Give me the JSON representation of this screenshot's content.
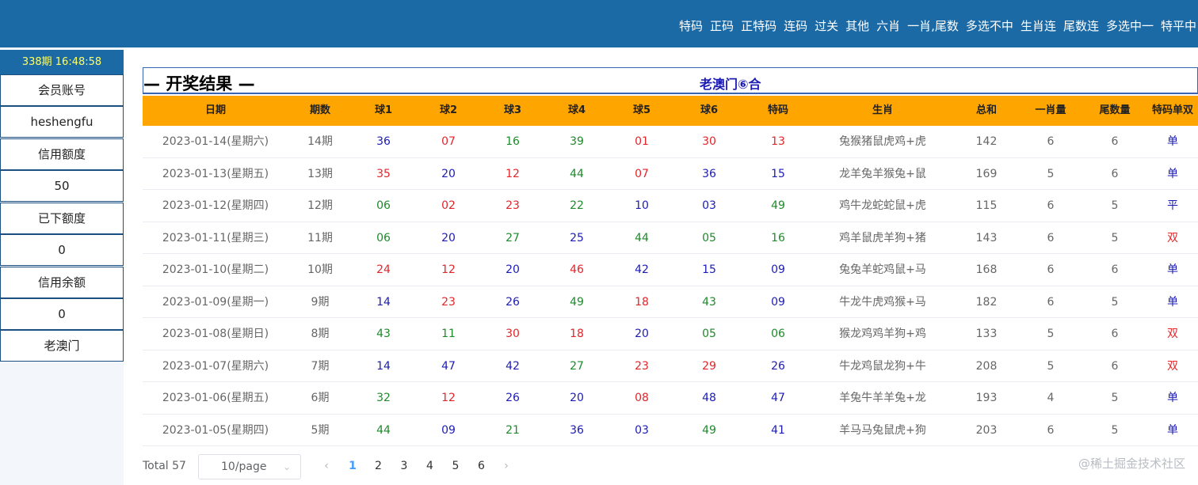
{
  "top_nav": [
    "特码",
    "正码",
    "正特码",
    "连码",
    "过关",
    "其他",
    "六肖",
    "一肖,尾数",
    "多选不中",
    "生肖连",
    "尾数连",
    "多选中一",
    "特平中"
  ],
  "sidebar": {
    "time": "338期 16:48:58",
    "items": [
      "会员账号",
      "heshengfu",
      "信用额度",
      "50",
      "已下额度",
      "0",
      "信用余额",
      "0",
      "老澳门"
    ]
  },
  "results": {
    "title": "— 开奖结果 —",
    "subtitle": "老澳门⑥合"
  },
  "table": {
    "headers": [
      "日期",
      "期数",
      "球1",
      "球2",
      "球3",
      "球4",
      "球5",
      "球6",
      "特码",
      "生肖",
      "总和",
      "一肖量",
      "尾数量",
      "特码单双"
    ],
    "rows": [
      {
        "date": "2023-01-14(星期六)",
        "period": "14期",
        "balls": [
          "36",
          "07",
          "16",
          "39",
          "01",
          "30",
          "13"
        ],
        "zodiac": "兔猴猪鼠虎鸡+虎",
        "sum": "142",
        "one_xiao": "6",
        "tail": "6",
        "odd_even": "单"
      },
      {
        "date": "2023-01-13(星期五)",
        "period": "13期",
        "balls": [
          "35",
          "20",
          "12",
          "44",
          "07",
          "36",
          "15"
        ],
        "zodiac": "龙羊兔羊猴兔+鼠",
        "sum": "169",
        "one_xiao": "5",
        "tail": "6",
        "odd_even": "单"
      },
      {
        "date": "2023-01-12(星期四)",
        "period": "12期",
        "balls": [
          "06",
          "02",
          "23",
          "22",
          "10",
          "03",
          "49"
        ],
        "zodiac": "鸡牛龙蛇蛇鼠+虎",
        "sum": "115",
        "one_xiao": "6",
        "tail": "5",
        "odd_even": "平"
      },
      {
        "date": "2023-01-11(星期三)",
        "period": "11期",
        "balls": [
          "06",
          "20",
          "27",
          "25",
          "44",
          "05",
          "16"
        ],
        "zodiac": "鸡羊鼠虎羊狗+猪",
        "sum": "143",
        "one_xiao": "6",
        "tail": "5",
        "odd_even": "双"
      },
      {
        "date": "2023-01-10(星期二)",
        "period": "10期",
        "balls": [
          "24",
          "12",
          "20",
          "46",
          "42",
          "15",
          "09"
        ],
        "zodiac": "兔兔羊蛇鸡鼠+马",
        "sum": "168",
        "one_xiao": "6",
        "tail": "6",
        "odd_even": "单"
      },
      {
        "date": "2023-01-09(星期一)",
        "period": "9期",
        "balls": [
          "14",
          "23",
          "26",
          "49",
          "18",
          "43",
          "09"
        ],
        "zodiac": "牛龙牛虎鸡猴+马",
        "sum": "182",
        "one_xiao": "6",
        "tail": "5",
        "odd_even": "单"
      },
      {
        "date": "2023-01-08(星期日)",
        "period": "8期",
        "balls": [
          "43",
          "11",
          "30",
          "18",
          "20",
          "05",
          "06"
        ],
        "zodiac": "猴龙鸡鸡羊狗+鸡",
        "sum": "133",
        "one_xiao": "5",
        "tail": "6",
        "odd_even": "双"
      },
      {
        "date": "2023-01-07(星期六)",
        "period": "7期",
        "balls": [
          "14",
          "47",
          "42",
          "27",
          "23",
          "29",
          "26"
        ],
        "zodiac": "牛龙鸡鼠龙狗+牛",
        "sum": "208",
        "one_xiao": "5",
        "tail": "6",
        "odd_even": "双"
      },
      {
        "date": "2023-01-06(星期五)",
        "period": "6期",
        "balls": [
          "32",
          "12",
          "26",
          "20",
          "08",
          "48",
          "47"
        ],
        "zodiac": "羊兔牛羊羊兔+龙",
        "sum": "193",
        "one_xiao": "4",
        "tail": "5",
        "odd_even": "单"
      },
      {
        "date": "2023-01-05(星期四)",
        "period": "5期",
        "balls": [
          "44",
          "09",
          "21",
          "36",
          "03",
          "49",
          "41"
        ],
        "zodiac": "羊马马兔鼠虎+狗",
        "sum": "203",
        "one_xiao": "6",
        "tail": "5",
        "odd_even": "单"
      }
    ]
  },
  "colors": {
    "red": "#e0262b",
    "blue": "#1c1cb4",
    "green": "#1e8a2b",
    "header_orange": "#ffa500",
    "topbar_blue": "#1b6aa6"
  },
  "ball_colors": {
    "01": "red",
    "02": "red",
    "03": "blue",
    "05": "green",
    "06": "green",
    "07": "red",
    "08": "red",
    "09": "blue",
    "10": "blue",
    "11": "green",
    "12": "red",
    "13": "red",
    "14": "blue",
    "15": "blue",
    "16": "green",
    "18": "red",
    "20": "blue",
    "21": "green",
    "22": "green",
    "23": "red",
    "24": "red",
    "25": "blue",
    "26": "blue",
    "27": "green",
    "29": "red",
    "30": "red",
    "32": "green",
    "35": "red",
    "36": "blue",
    "39": "green",
    "41": "blue",
    "42": "blue",
    "43": "green",
    "44": "green",
    "46": "red",
    "47": "blue",
    "48": "blue",
    "49": "green"
  },
  "odd_even_colors": {
    "单": "blue",
    "双": "red",
    "平": "blue"
  },
  "pagination": {
    "total": "Total 57",
    "page_size": "10/page",
    "pages": [
      "1",
      "2",
      "3",
      "4",
      "5",
      "6"
    ],
    "current": "1"
  },
  "watermark": "@稀土掘金技术社区"
}
